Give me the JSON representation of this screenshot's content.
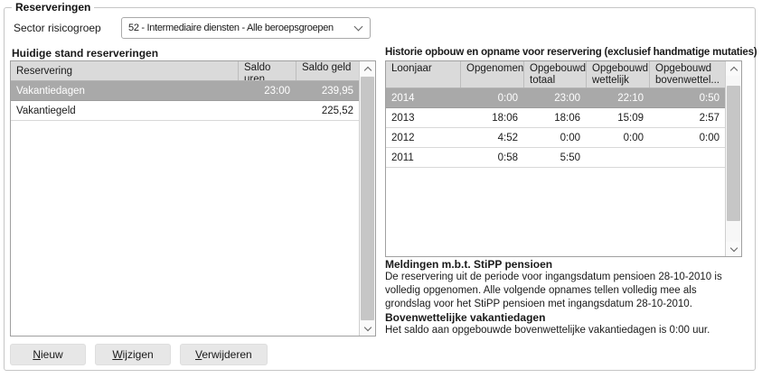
{
  "groupbox_title": "Reserveringen",
  "sector": {
    "label": "Sector risicogroep",
    "value": "52 - Intermediaire diensten - Alle beroepsgroepen"
  },
  "left_panel": {
    "title": "Huidige stand reserveringen",
    "table": {
      "columns": [
        "Reservering",
        "Saldo uren",
        "Saldo geld"
      ],
      "rows": [
        {
          "reservering": "Vakantiedagen",
          "saldo_uren": "23:00",
          "saldo_geld": "239,95",
          "selected": true
        },
        {
          "reservering": "Vakantiegeld",
          "saldo_uren": "",
          "saldo_geld": "225,52",
          "selected": false
        }
      ]
    },
    "buttons": [
      {
        "first": "N",
        "rest": "ieuw"
      },
      {
        "first": "W",
        "rest": "ijzigen"
      },
      {
        "first": "V",
        "rest": "erwijderen"
      }
    ]
  },
  "right_panel": {
    "title": "Historie opbouw en opname voor reservering (exclusief handmatige mutaties)",
    "table": {
      "columns": [
        "Loonjaar",
        "Opgenomen",
        "Opgebouwd totaal",
        "Opgebouwd wettelijk",
        "Opgebouwd bovenwettel..."
      ],
      "rows": [
        {
          "loonjaar": "2014",
          "opgenomen": "0:00",
          "totaal": "23:00",
          "wettelijk": "22:10",
          "bovenwettelijk": "0:50",
          "selected": true
        },
        {
          "loonjaar": "2013",
          "opgenomen": "18:06",
          "totaal": "18:06",
          "wettelijk": "15:09",
          "bovenwettelijk": "2:57",
          "selected": false
        },
        {
          "loonjaar": "2012",
          "opgenomen": "4:52",
          "totaal": "0:00",
          "wettelijk": "0:00",
          "bovenwettelijk": "0:00",
          "selected": false
        },
        {
          "loonjaar": "2011",
          "opgenomen": "0:58",
          "totaal": "5:50",
          "wettelijk": "",
          "bovenwettelijk": "",
          "selected": false
        }
      ]
    },
    "meldingen": {
      "title": "Meldingen m.b.t. StiPP pensioen",
      "body_lines": [
        "De reservering uit de periode voor ingangsdatum pensioen 28-10-2010 is",
        "volledig opgenomen. Alle volgende opnames tellen volledig mee als",
        "grondslag voor het StiPP pensioen met ingangsdatum 28-10-2010."
      ],
      "subtitle": "Bovenwettelijke vakantiedagen",
      "subbody": "Het saldo aan opgebouwde bovenwettelijke vakantiedagen is 0:00 uur."
    }
  },
  "colors": {
    "selected_row_bg": "#a9a9a9",
    "header_bg": "#dadada",
    "table_border": "#a0a0a0",
    "groupbox_border": "#c6c6c6"
  }
}
